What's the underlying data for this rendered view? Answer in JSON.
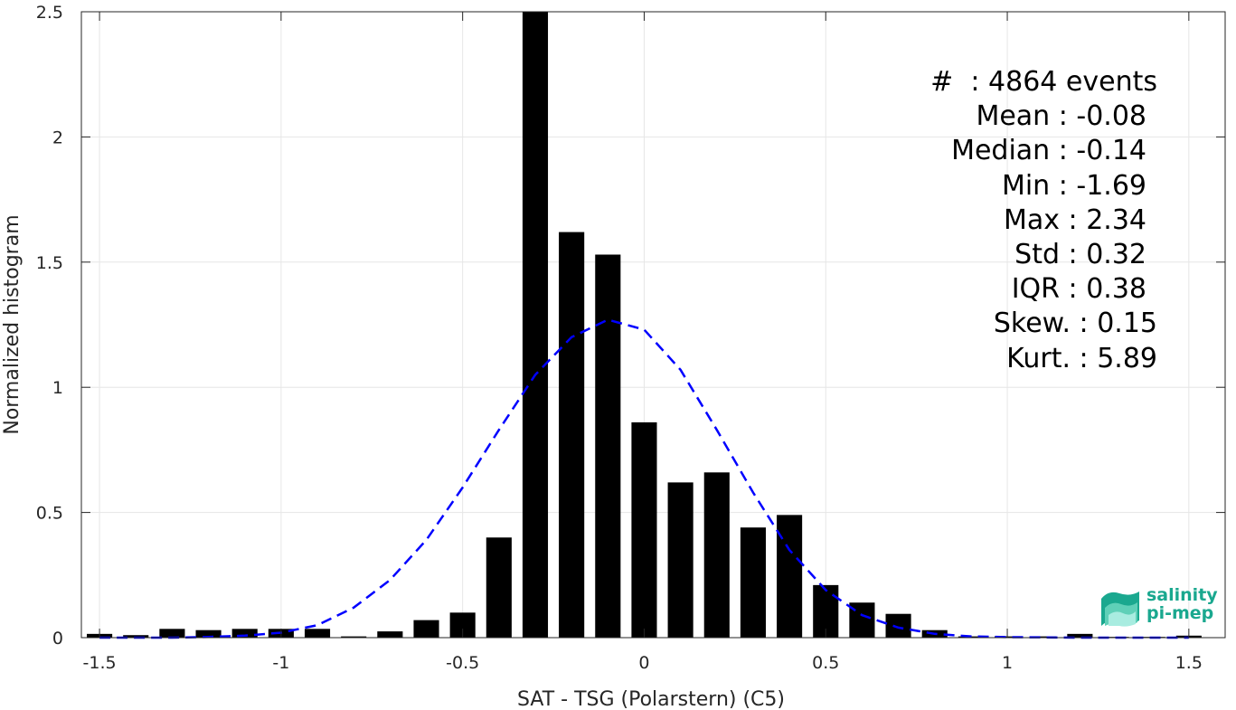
{
  "chart_data": {
    "type": "bar",
    "xlabel": "SAT - TSG (Polarstern) (C5)",
    "ylabel": "Normalized histogram",
    "xlim": [
      -1.55,
      1.6
    ],
    "ylim": [
      0,
      2.5
    ],
    "grid": true,
    "x_ticks": [
      "-1.5",
      "-1",
      "-0.5",
      "0",
      "0.5",
      "1",
      "1.5"
    ],
    "x_tick_values": [
      -1.5,
      -1,
      -0.5,
      0,
      0.5,
      1,
      1.5
    ],
    "y_ticks": [
      "0",
      "0.5",
      "1",
      "1.5",
      "2",
      "2.5"
    ],
    "y_tick_values": [
      0,
      0.5,
      1,
      1.5,
      2,
      2.5
    ],
    "bar_width": 0.07,
    "bar_color": "#000000",
    "bars": [
      {
        "x": -1.5,
        "y": 0.015
      },
      {
        "x": -1.4,
        "y": 0.01
      },
      {
        "x": -1.3,
        "y": 0.035
      },
      {
        "x": -1.2,
        "y": 0.03
      },
      {
        "x": -1.1,
        "y": 0.035
      },
      {
        "x": -1.0,
        "y": 0.035
      },
      {
        "x": -0.9,
        "y": 0.035
      },
      {
        "x": -0.8,
        "y": 0.005
      },
      {
        "x": -0.7,
        "y": 0.025
      },
      {
        "x": -0.6,
        "y": 0.07
      },
      {
        "x": -0.5,
        "y": 0.1
      },
      {
        "x": -0.4,
        "y": 0.4
      },
      {
        "x": -0.3,
        "y": 2.5
      },
      {
        "x": -0.2,
        "y": 1.62
      },
      {
        "x": -0.1,
        "y": 1.53
      },
      {
        "x": 0.0,
        "y": 0.86
      },
      {
        "x": 0.1,
        "y": 0.62
      },
      {
        "x": 0.2,
        "y": 0.66
      },
      {
        "x": 0.3,
        "y": 0.44
      },
      {
        "x": 0.4,
        "y": 0.49
      },
      {
        "x": 0.5,
        "y": 0.21
      },
      {
        "x": 0.6,
        "y": 0.14
      },
      {
        "x": 0.7,
        "y": 0.095
      },
      {
        "x": 0.8,
        "y": 0.03
      },
      {
        "x": 0.9,
        "y": 0.005
      },
      {
        "x": 1.0,
        "y": 0.005
      },
      {
        "x": 1.1,
        "y": 0.005
      },
      {
        "x": 1.2,
        "y": 0.015
      },
      {
        "x": 1.3,
        "y": 0.003
      },
      {
        "x": 1.4,
        "y": 0.003
      },
      {
        "x": 1.5,
        "y": 0.008
      }
    ],
    "fit_curve": {
      "style": "dashed",
      "color": "#0000ff",
      "x": [
        -1.5,
        -1.4,
        -1.3,
        -1.2,
        -1.1,
        -1.0,
        -0.9,
        -0.8,
        -0.7,
        -0.6,
        -0.5,
        -0.4,
        -0.3,
        -0.2,
        -0.1,
        0.0,
        0.1,
        0.2,
        0.3,
        0.4,
        0.5,
        0.6,
        0.7,
        0.8,
        0.9,
        1.0,
        1.1,
        1.2,
        1.3,
        1.4,
        1.5
      ],
      "y": [
        0.0,
        0.0,
        0.0,
        0.003,
        0.008,
        0.02,
        0.05,
        0.12,
        0.23,
        0.39,
        0.6,
        0.83,
        1.05,
        1.2,
        1.27,
        1.23,
        1.07,
        0.83,
        0.58,
        0.35,
        0.19,
        0.09,
        0.04,
        0.015,
        0.005,
        0.002,
        0.001,
        0.0,
        0.0,
        0.0,
        0.0
      ]
    }
  },
  "stats": [
    {
      "label": "#  ",
      "value": ": 4864 events"
    },
    {
      "label": "Mean ",
      "value": ": -0.08"
    },
    {
      "label": "Median ",
      "value": ": -0.14"
    },
    {
      "label": "Min ",
      "value": ": -1.69"
    },
    {
      "label": "Max ",
      "value": ": 2.34"
    },
    {
      "label": "Std ",
      "value": ": 0.32"
    },
    {
      "label": "IQR ",
      "value": ": 0.38"
    },
    {
      "label": "Skew. ",
      "value": ": 0.15"
    },
    {
      "label": "Kurt. ",
      "value": ": 5.89"
    }
  ],
  "logo": {
    "line1": "salinity",
    "line2": "pi-mep"
  }
}
